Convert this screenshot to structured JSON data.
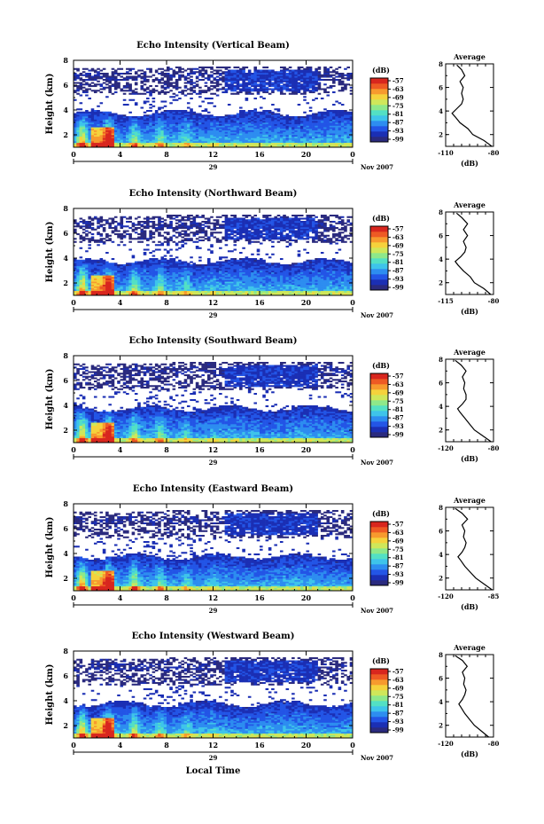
{
  "figure": {
    "colorbar_unit": "(dB)",
    "colorbar_ticks": [
      "-57",
      "-63",
      "-69",
      "-75",
      "-81",
      "-87",
      "-93",
      "-99"
    ],
    "colorscale": [
      "#2a2a7e",
      "#1b2fb4",
      "#2355e6",
      "#2d8df0",
      "#3ec4ea",
      "#53e0c4",
      "#8ee88a",
      "#cfe75a",
      "#f5d23c",
      "#f79a2e",
      "#ee5a24",
      "#d8261e"
    ],
    "time_ticks": [
      "0",
      "4",
      "8",
      "12",
      "16",
      "20",
      "0"
    ],
    "date_day": "29",
    "date_month": "Nov 2007",
    "height_ticks": [
      "2",
      "4",
      "6",
      "8"
    ],
    "height_axis_label": "Height (km)",
    "avg_title": "Average",
    "avg_unit": "(dB)",
    "xlabel": "Local Time"
  },
  "chart_data": [
    {
      "type": "heatmap",
      "title": "Echo Intensity (Vertical Beam)",
      "xlabel": "",
      "ylabel": "Height (km)",
      "xlim": [
        0,
        24
      ],
      "ylim": [
        1,
        8
      ],
      "clim": [
        -99,
        -54
      ],
      "average_profile": {
        "title": "Average",
        "xlabel": "(dB)",
        "xlim": [
          -110,
          -80
        ],
        "xtick_labels": [
          "-110",
          "-80"
        ],
        "heights": [
          1.0,
          1.5,
          2.0,
          2.5,
          3.0,
          3.5,
          3.8,
          4.2,
          4.6,
          5.0,
          5.5,
          6.0,
          6.5,
          7.0,
          7.5,
          7.9
        ],
        "values": [
          -81,
          -86,
          -93,
          -96,
          -101,
          -104,
          -106,
          -103,
          -100,
          -99,
          -100,
          -99,
          -101,
          -98,
          -100,
          -103
        ]
      }
    },
    {
      "type": "heatmap",
      "title": "Echo Intensity (Northward Beam)",
      "xlabel": "",
      "ylabel": "Height (km)",
      "xlim": [
        0,
        24
      ],
      "ylim": [
        1,
        8
      ],
      "clim": [
        -99,
        -54
      ],
      "average_profile": {
        "title": "Average",
        "xlabel": "(dB)",
        "xlim": [
          -115,
          -80
        ],
        "xtick_labels": [
          "-115",
          "-80"
        ],
        "heights": [
          1.0,
          1.5,
          2.0,
          2.5,
          3.0,
          3.5,
          3.8,
          4.2,
          4.6,
          5.0,
          5.5,
          6.0,
          6.5,
          7.0,
          7.5,
          7.9
        ],
        "values": [
          -82,
          -87,
          -94,
          -97,
          -102,
          -106,
          -108,
          -104,
          -101,
          -100,
          -102,
          -99,
          -102,
          -99,
          -103,
          -107
        ]
      }
    },
    {
      "type": "heatmap",
      "title": "Echo Intensity (Southward Beam)",
      "xlabel": "",
      "ylabel": "Height (km)",
      "xlim": [
        0,
        24
      ],
      "ylim": [
        1,
        8
      ],
      "clim": [
        -99,
        -54
      ],
      "average_profile": {
        "title": "Average",
        "xlabel": "(dB)",
        "xlim": [
          -120,
          -80
        ],
        "xtick_labels": [
          "-120",
          "-80"
        ],
        "heights": [
          1.0,
          1.5,
          2.0,
          2.5,
          3.0,
          3.5,
          3.8,
          4.2,
          4.6,
          5.0,
          5.5,
          6.0,
          6.5,
          7.0,
          7.5,
          7.9
        ],
        "values": [
          -82,
          -89,
          -96,
          -100,
          -104,
          -108,
          -110,
          -106,
          -103,
          -103,
          -105,
          -104,
          -106,
          -103,
          -107,
          -112
        ]
      }
    },
    {
      "type": "heatmap",
      "title": "Echo Intensity (Eastward Beam)",
      "xlabel": "",
      "ylabel": "Height (km)",
      "xlim": [
        0,
        24
      ],
      "ylim": [
        1,
        8
      ],
      "clim": [
        -99,
        -54
      ],
      "average_profile": {
        "title": "Average",
        "xlabel": "(dB)",
        "xlim": [
          -120,
          -85
        ],
        "xtick_labels": [
          "-120",
          "-85"
        ],
        "heights": [
          1.0,
          1.5,
          2.0,
          2.5,
          3.0,
          3.5,
          3.8,
          4.2,
          4.6,
          5.0,
          5.5,
          6.0,
          6.5,
          7.0,
          7.5,
          7.9
        ],
        "values": [
          -86,
          -92,
          -98,
          -102,
          -106,
          -109,
          -111,
          -108,
          -106,
          -105,
          -107,
          -106,
          -108,
          -104,
          -108,
          -113
        ]
      }
    },
    {
      "type": "heatmap",
      "title": "Echo Intensity (Westward Beam)",
      "xlabel": "Local Time",
      "ylabel": "Height (km)",
      "xlim": [
        0,
        24
      ],
      "ylim": [
        1,
        8
      ],
      "clim": [
        -99,
        -54
      ],
      "average_profile": {
        "title": "Average",
        "xlabel": "(dB)",
        "xlim": [
          -120,
          -80
        ],
        "xtick_labels": [
          "-120",
          "-80"
        ],
        "heights": [
          1.0,
          1.5,
          2.0,
          2.5,
          3.0,
          3.5,
          3.8,
          4.2,
          4.6,
          5.0,
          5.5,
          6.0,
          6.5,
          7.0,
          7.5,
          7.9
        ],
        "values": [
          -84,
          -90,
          -96,
          -100,
          -104,
          -107,
          -109,
          -106,
          -104,
          -103,
          -105,
          -104,
          -106,
          -102,
          -106,
          -112
        ]
      }
    }
  ]
}
